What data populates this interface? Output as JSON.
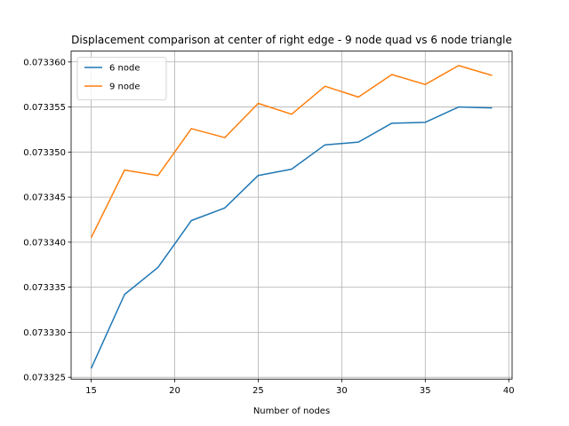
{
  "chart_data": {
    "type": "line",
    "title": "Displacement comparison at center of right edge - 9 node quad vs 6 node triangle",
    "xlabel": "Number of nodes",
    "ylabel": "",
    "x": [
      15,
      17,
      19,
      21,
      23,
      25,
      27,
      29,
      31,
      33,
      35,
      37,
      39
    ],
    "xlim": [
      13.8,
      40.2
    ],
    "ylim": [
      0.0733248,
      0.0733612
    ],
    "xticks": [
      15,
      20,
      25,
      30,
      35,
      40
    ],
    "yticks": [
      0.073325,
      0.07333,
      0.073335,
      0.07334,
      0.073345,
      0.07335,
      0.073355,
      0.07336
    ],
    "ytick_labels": [
      "0.073325",
      "0.073330",
      "0.073335",
      "0.073340",
      "0.073345",
      "0.073350",
      "0.073355",
      "0.073360"
    ],
    "grid": true,
    "legend_position": "top-left",
    "series": [
      {
        "name": "6 node",
        "color": "#1f77b4",
        "values": [
          0.073326,
          0.0733342,
          0.0733372,
          0.0733424,
          0.0733438,
          0.0733474,
          0.0733481,
          0.0733508,
          0.0733511,
          0.0733532,
          0.0733533,
          0.073355,
          0.0733549
        ]
      },
      {
        "name": "9 node",
        "color": "#ff7f0e",
        "values": [
          0.0733405,
          0.073348,
          0.0733474,
          0.0733526,
          0.0733516,
          0.0733554,
          0.0733542,
          0.0733573,
          0.0733561,
          0.0733586,
          0.0733575,
          0.0733596,
          0.0733585
        ]
      }
    ]
  }
}
